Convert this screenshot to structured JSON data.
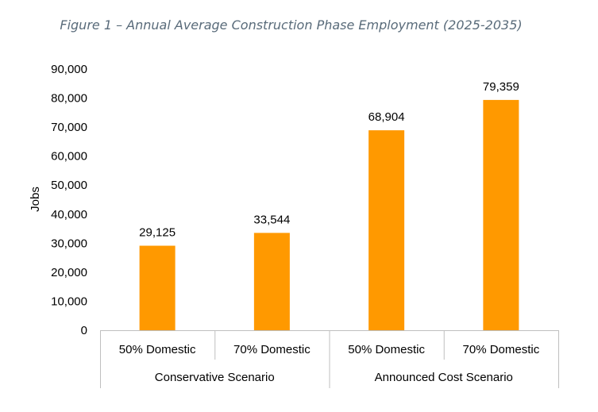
{
  "chart_data": {
    "type": "bar",
    "title": "Figure 1 – Annual Average Construction Phase Employment (2025-2035)",
    "ylabel": "Jobs",
    "ylim": [
      0,
      90000
    ],
    "ytick_labels": [
      "0",
      "10,000",
      "20,000",
      "30,000",
      "40,000",
      "50,000",
      "60,000",
      "70,000",
      "80,000",
      "90,000"
    ],
    "categories": [
      "50% Domestic",
      "70% Domestic",
      "50% Domestic",
      "70% Domestic"
    ],
    "groups": [
      {
        "label": "Conservative Scenario",
        "span": 2
      },
      {
        "label": "Announced Cost Scenario",
        "span": 2
      }
    ],
    "values": [
      29125,
      33544,
      68904,
      79359
    ],
    "value_labels": [
      "29,125",
      "33,544",
      "68,904",
      "79,359"
    ],
    "bar_color": "#ff9900",
    "grid": false
  }
}
